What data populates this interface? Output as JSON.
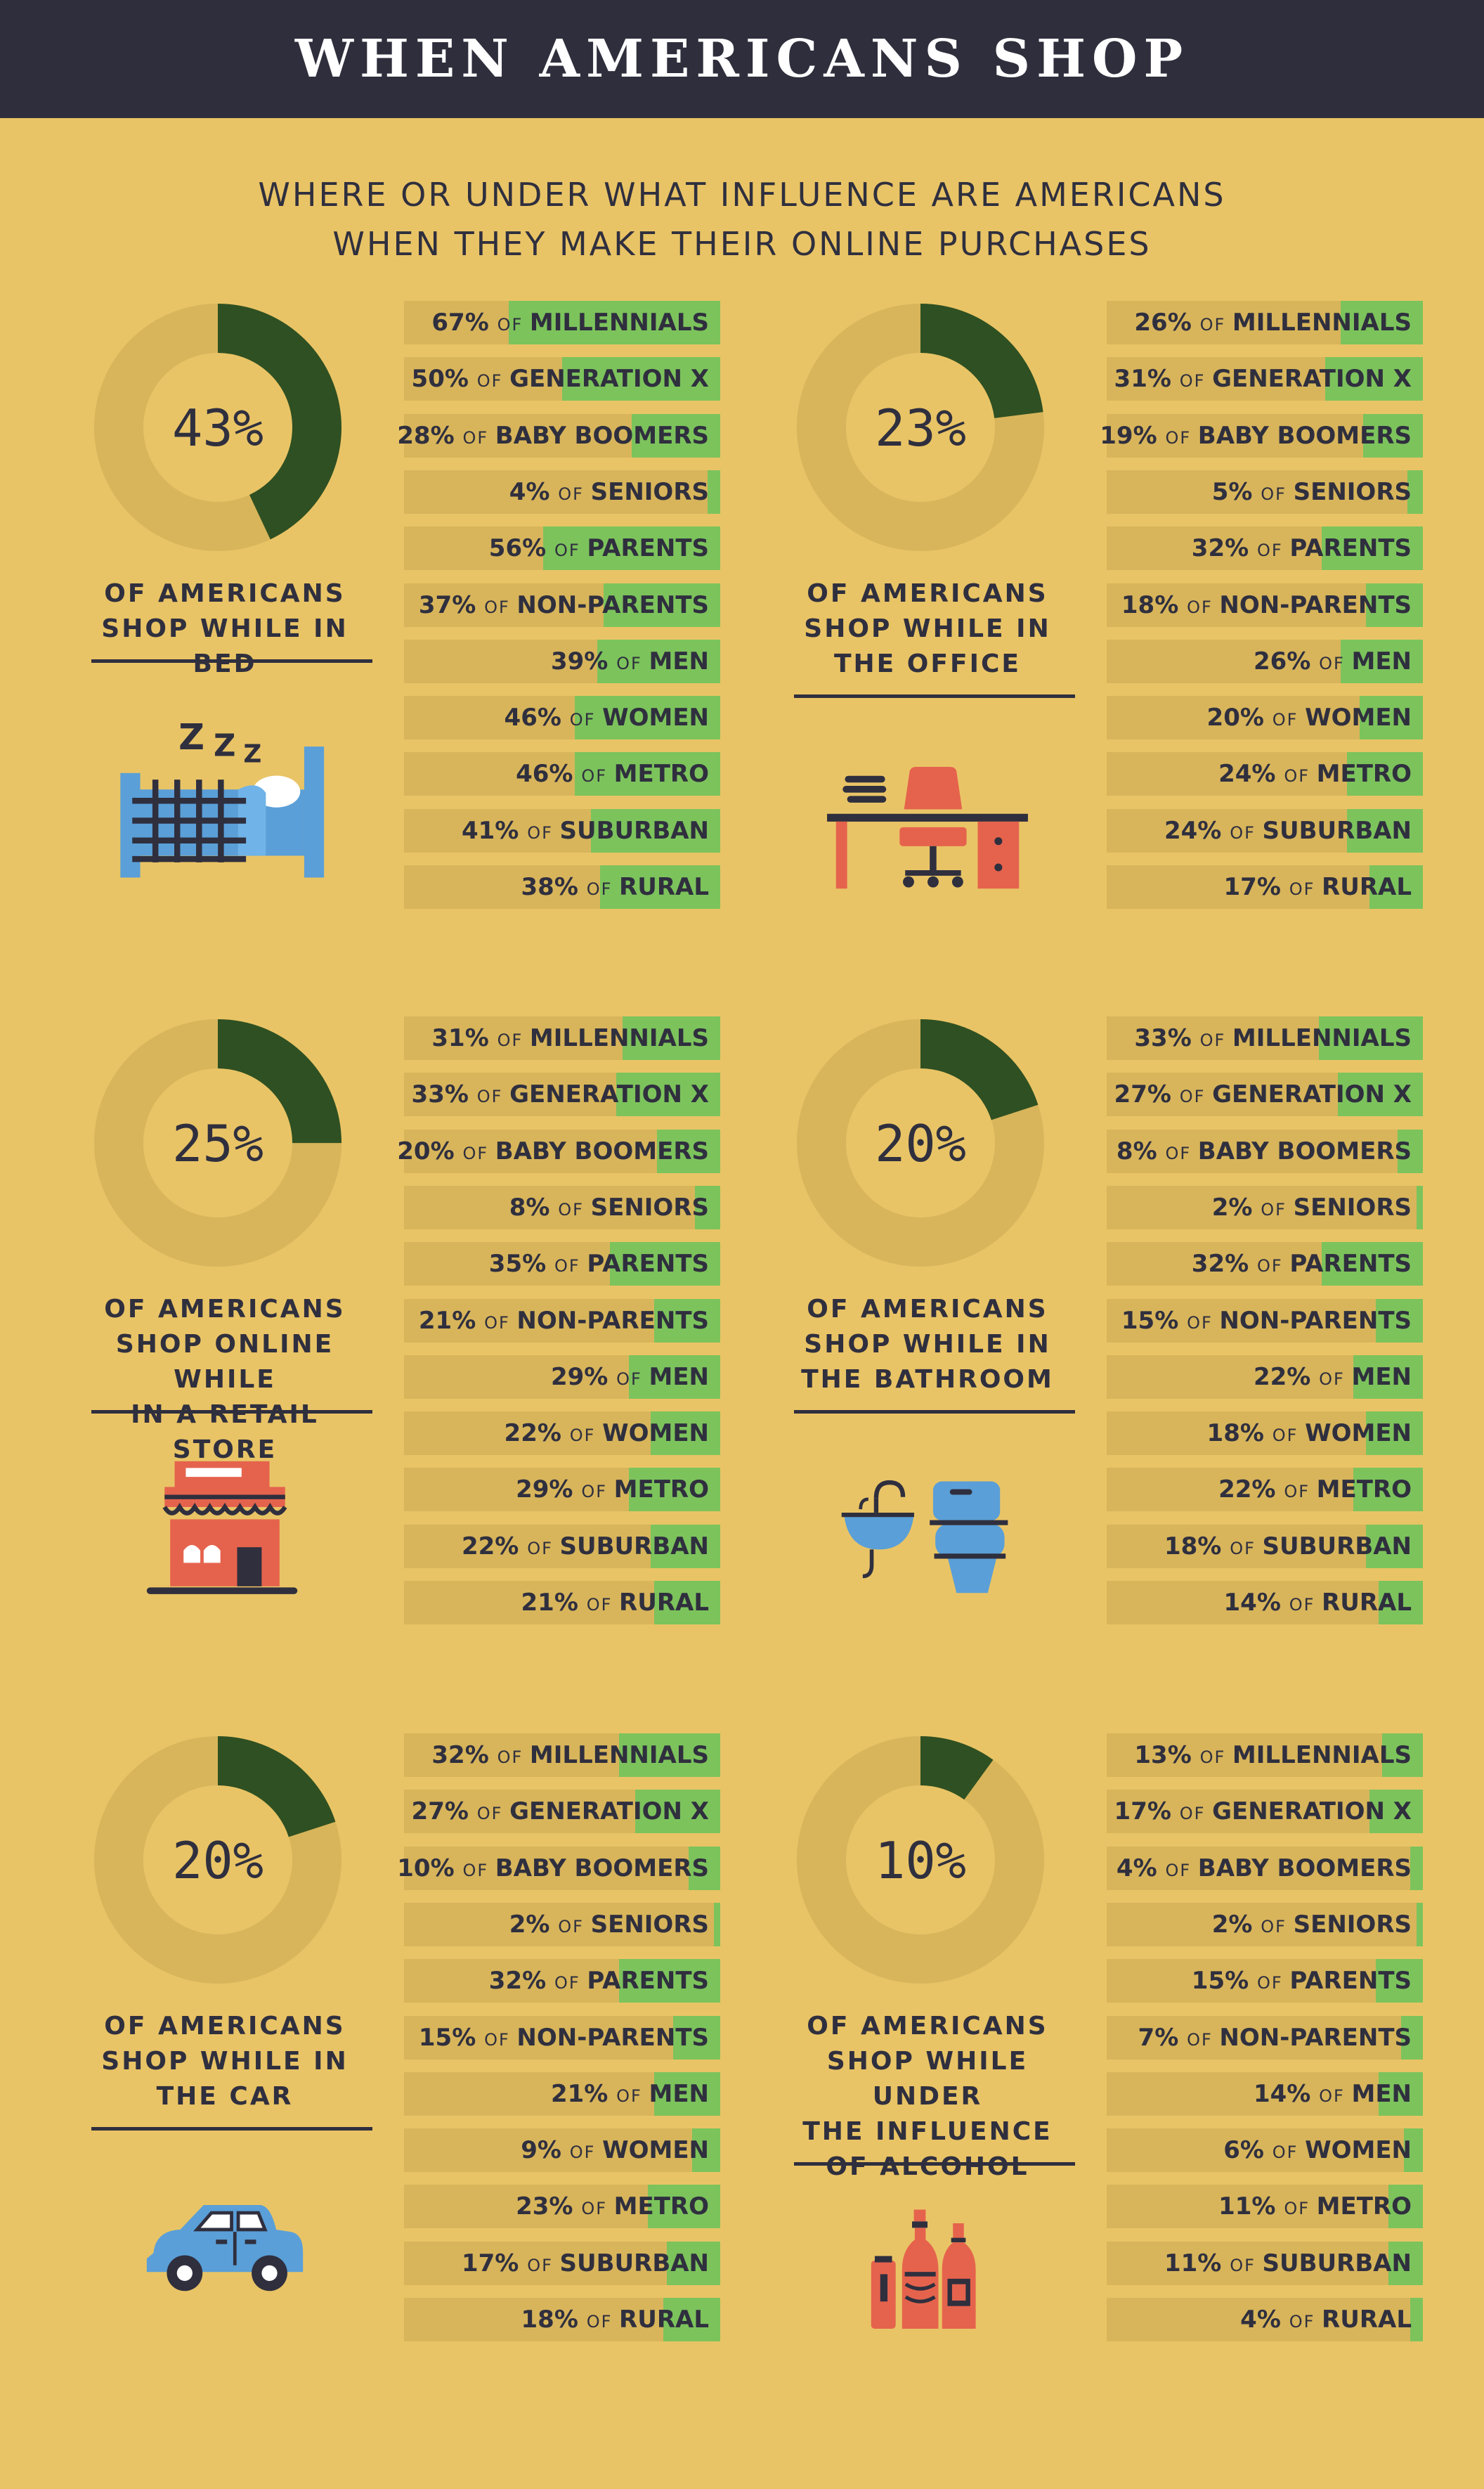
{
  "title": "WHEN AMERICANS SHOP",
  "subtitle": [
    "WHERE OR UNDER WHAT INFLUENCE ARE AMERICANS",
    "WHEN THEY MAKE THEIR ONLINE PURCHASES"
  ],
  "colors": {
    "background": "#e9c466",
    "header": "#2f2e3c",
    "donut_fill": "#2f5022",
    "donut_track": "#d8b55b",
    "bar_fill": "#7cc35c",
    "bar_track": "#d8b55b",
    "icon_red": "#e5634d",
    "icon_blue": "#5a9fd8",
    "icon_dark": "#2f2f3e"
  },
  "of_label": "OF",
  "chart_data": [
    {
      "type": "bar",
      "icon": "bed-icon",
      "headline_value": 43,
      "headline": "43%",
      "description": [
        "OF AMERICANS",
        "SHOP WHILE IN BED"
      ],
      "categories": [
        "MILLENNIALS",
        "GENERATION X",
        "BABY BOOMERS",
        "SENIORS",
        "PARENTS",
        "NON-PARENTS",
        "MEN",
        "WOMEN",
        "METRO",
        "SUBURBAN",
        "RURAL"
      ],
      "values": [
        67,
        50,
        28,
        4,
        56,
        37,
        39,
        46,
        46,
        41,
        38
      ],
      "labels": [
        "67%",
        "50%",
        "28%",
        "4%",
        "56%",
        "37%",
        "39%",
        "46%",
        "46%",
        "41%",
        "38%"
      ]
    },
    {
      "type": "bar",
      "icon": "office-desk-icon",
      "headline_value": 23,
      "headline": "23%",
      "description": [
        "OF AMERICANS",
        "SHOP WHILE IN",
        "THE OFFICE"
      ],
      "categories": [
        "MILLENNIALS",
        "GENERATION X",
        "BABY BOOMERS",
        "SENIORS",
        "PARENTS",
        "NON-PARENTS",
        "MEN",
        "WOMEN",
        "METRO",
        "SUBURBAN",
        "RURAL"
      ],
      "values": [
        26,
        31,
        19,
        5,
        32,
        18,
        26,
        20,
        24,
        24,
        17
      ],
      "labels": [
        "26%",
        "31%",
        "19%",
        "5%",
        "32%",
        "18%",
        "26%",
        "20%",
        "24%",
        "24%",
        "17%"
      ]
    },
    {
      "type": "bar",
      "icon": "retail-store-icon",
      "headline_value": 25,
      "headline": "25%",
      "description": [
        "OF AMERICANS",
        "SHOP ONLINE WHILE",
        "IN A RETAIL STORE"
      ],
      "categories": [
        "MILLENNIALS",
        "GENERATION X",
        "BABY BOOMERS",
        "SENIORS",
        "PARENTS",
        "NON-PARENTS",
        "MEN",
        "WOMEN",
        "METRO",
        "SUBURBAN",
        "RURAL"
      ],
      "values": [
        31,
        33,
        20,
        8,
        35,
        21,
        29,
        22,
        29,
        22,
        21
      ],
      "labels": [
        "31%",
        "33%",
        "20%",
        "8%",
        "35%",
        "21%",
        "29%",
        "22%",
        "29%",
        "22%",
        "21%"
      ]
    },
    {
      "type": "bar",
      "icon": "bathroom-icon",
      "headline_value": 20,
      "headline": "20%",
      "description": [
        "OF AMERICANS",
        "SHOP WHILE IN",
        "THE BATHROOM"
      ],
      "categories": [
        "MILLENNIALS",
        "GENERATION X",
        "BABY BOOMERS",
        "SENIORS",
        "PARENTS",
        "NON-PARENTS",
        "MEN",
        "WOMEN",
        "METRO",
        "SUBURBAN",
        "RURAL"
      ],
      "values": [
        33,
        27,
        8,
        2,
        32,
        15,
        22,
        18,
        22,
        18,
        14
      ],
      "labels": [
        "33%",
        "27%",
        "8%",
        "2%",
        "32%",
        "15%",
        "22%",
        "18%",
        "22%",
        "18%",
        "14%"
      ]
    },
    {
      "type": "bar",
      "icon": "car-icon",
      "headline_value": 20,
      "headline": "20%",
      "description": [
        "OF AMERICANS",
        "SHOP WHILE IN",
        "THE CAR"
      ],
      "categories": [
        "MILLENNIALS",
        "GENERATION X",
        "BABY BOOMERS",
        "SENIORS",
        "PARENTS",
        "NON-PARENTS",
        "MEN",
        "WOMEN",
        "METRO",
        "SUBURBAN",
        "RURAL"
      ],
      "values": [
        32,
        27,
        10,
        2,
        32,
        15,
        21,
        9,
        23,
        17,
        18
      ],
      "labels": [
        "32%",
        "27%",
        "10%",
        "2%",
        "32%",
        "15%",
        "21%",
        "9%",
        "23%",
        "17%",
        "18%"
      ]
    },
    {
      "type": "bar",
      "icon": "alcohol-bottles-icon",
      "headline_value": 10,
      "headline": "10%",
      "description": [
        "OF AMERICANS",
        "SHOP WHILE UNDER",
        "THE INFLUENCE",
        "OF ALCOHOL"
      ],
      "categories": [
        "MILLENNIALS",
        "GENERATION X",
        "BABY BOOMERS",
        "SENIORS",
        "PARENTS",
        "NON-PARENTS",
        "MEN",
        "WOMEN",
        "METRO",
        "SUBURBAN",
        "RURAL"
      ],
      "values": [
        13,
        17,
        4,
        2,
        15,
        7,
        14,
        6,
        11,
        11,
        4
      ],
      "labels": [
        "13%",
        "17%",
        "4%",
        "2%",
        "15%",
        "7%",
        "14%",
        "6%",
        "11%",
        "11%",
        "4%"
      ]
    }
  ]
}
